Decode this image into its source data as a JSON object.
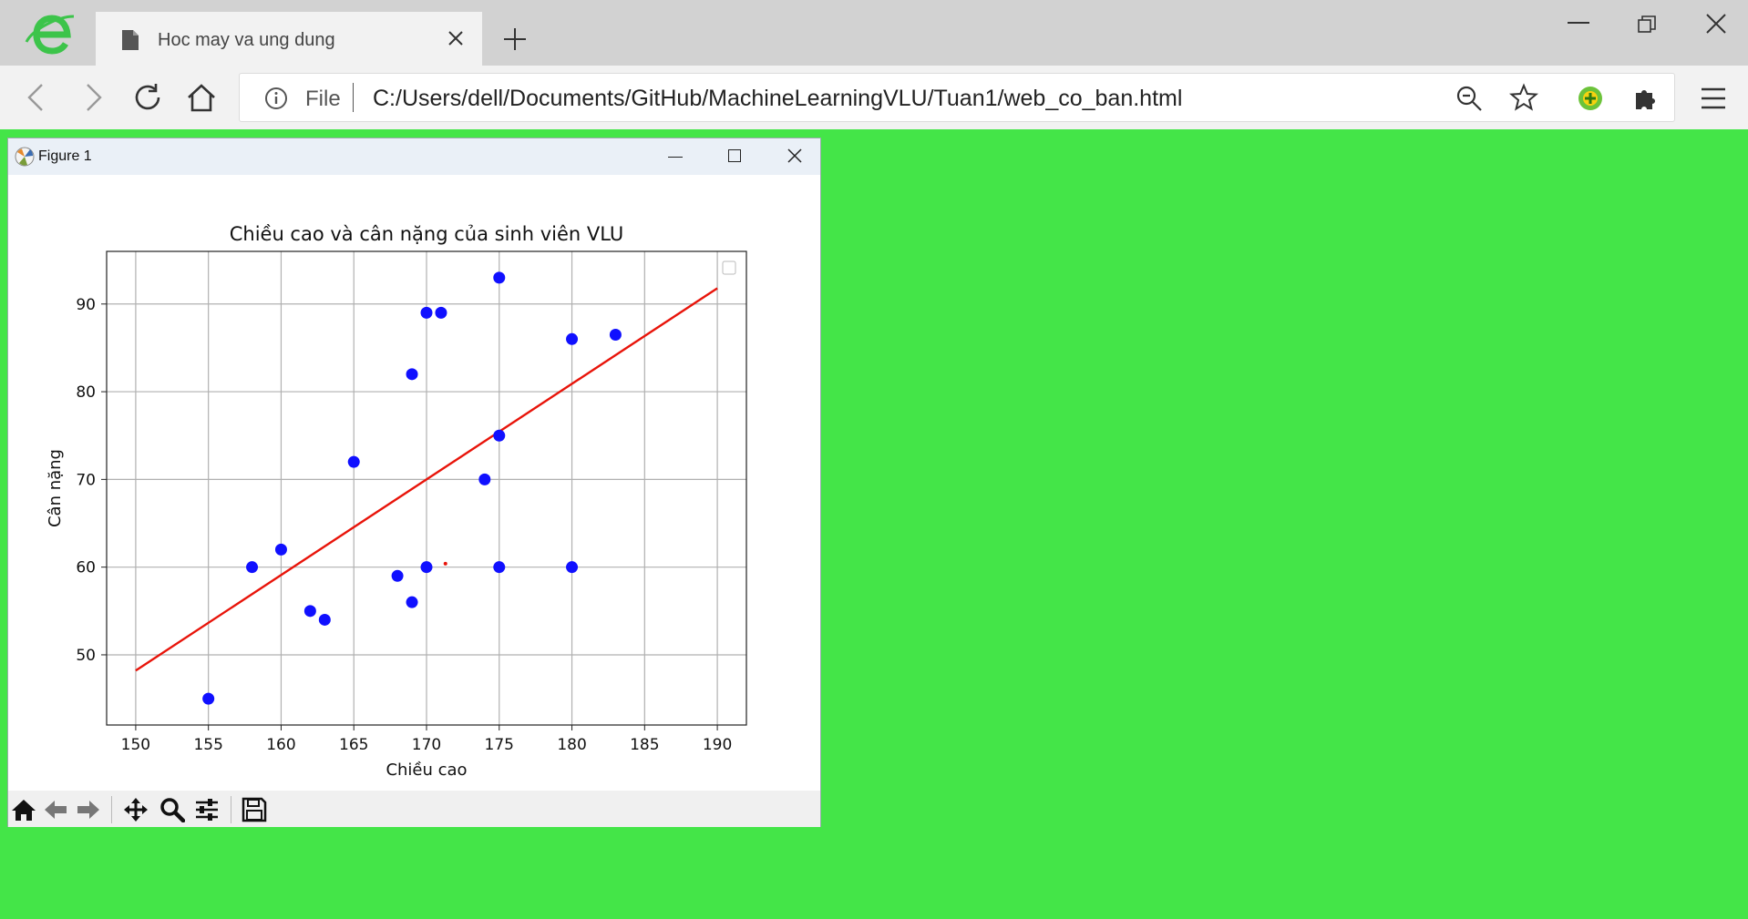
{
  "browser": {
    "tab_title": "Hoc may va ung dung",
    "url_scheme_label": "File",
    "url": "C:/Users/dell/Documents/GitHub/MachineLearningVLU/Tuan1/web_co_ban.html"
  },
  "figure_window": {
    "title": "Figure 1"
  },
  "toolbar": {
    "buttons": [
      "home-icon",
      "back-arrow-icon",
      "forward-arrow-icon",
      "pan-icon",
      "zoom-magnifier-icon",
      "configure-subplots-icon",
      "save-icon"
    ]
  },
  "colors": {
    "page_background": "#44e548",
    "points": "#1010ff",
    "regression_line": "#e8140a"
  },
  "chart_data": {
    "type": "scatter",
    "title": "Chiều cao và cân nặng của sinh viên VLU",
    "xlabel": "Chiều cao",
    "ylabel": "Cân nặng",
    "xlim": [
      148,
      192
    ],
    "ylim": [
      42,
      96
    ],
    "xticks": [
      150,
      155,
      160,
      165,
      170,
      175,
      180,
      185,
      190
    ],
    "yticks": [
      50,
      60,
      70,
      80,
      90
    ],
    "grid": true,
    "legend": "top-right (empty)",
    "points": [
      {
        "x": 155,
        "y": 45
      },
      {
        "x": 158,
        "y": 60
      },
      {
        "x": 160,
        "y": 62
      },
      {
        "x": 162,
        "y": 55
      },
      {
        "x": 163,
        "y": 54
      },
      {
        "x": 165,
        "y": 72
      },
      {
        "x": 168,
        "y": 59
      },
      {
        "x": 169,
        "y": 56
      },
      {
        "x": 169,
        "y": 82
      },
      {
        "x": 170,
        "y": 60
      },
      {
        "x": 170,
        "y": 89
      },
      {
        "x": 171,
        "y": 89
      },
      {
        "x": 174,
        "y": 70
      },
      {
        "x": 175,
        "y": 60
      },
      {
        "x": 175,
        "y": 75
      },
      {
        "x": 175,
        "y": 93
      },
      {
        "x": 180,
        "y": 60
      },
      {
        "x": 180,
        "y": 86
      },
      {
        "x": 183,
        "y": 86.5
      }
    ],
    "regression_line": {
      "x": [
        150,
        190
      ],
      "y": [
        48.2,
        91.8
      ]
    },
    "small_marker": {
      "x": 171.3,
      "y": 60.4
    }
  }
}
